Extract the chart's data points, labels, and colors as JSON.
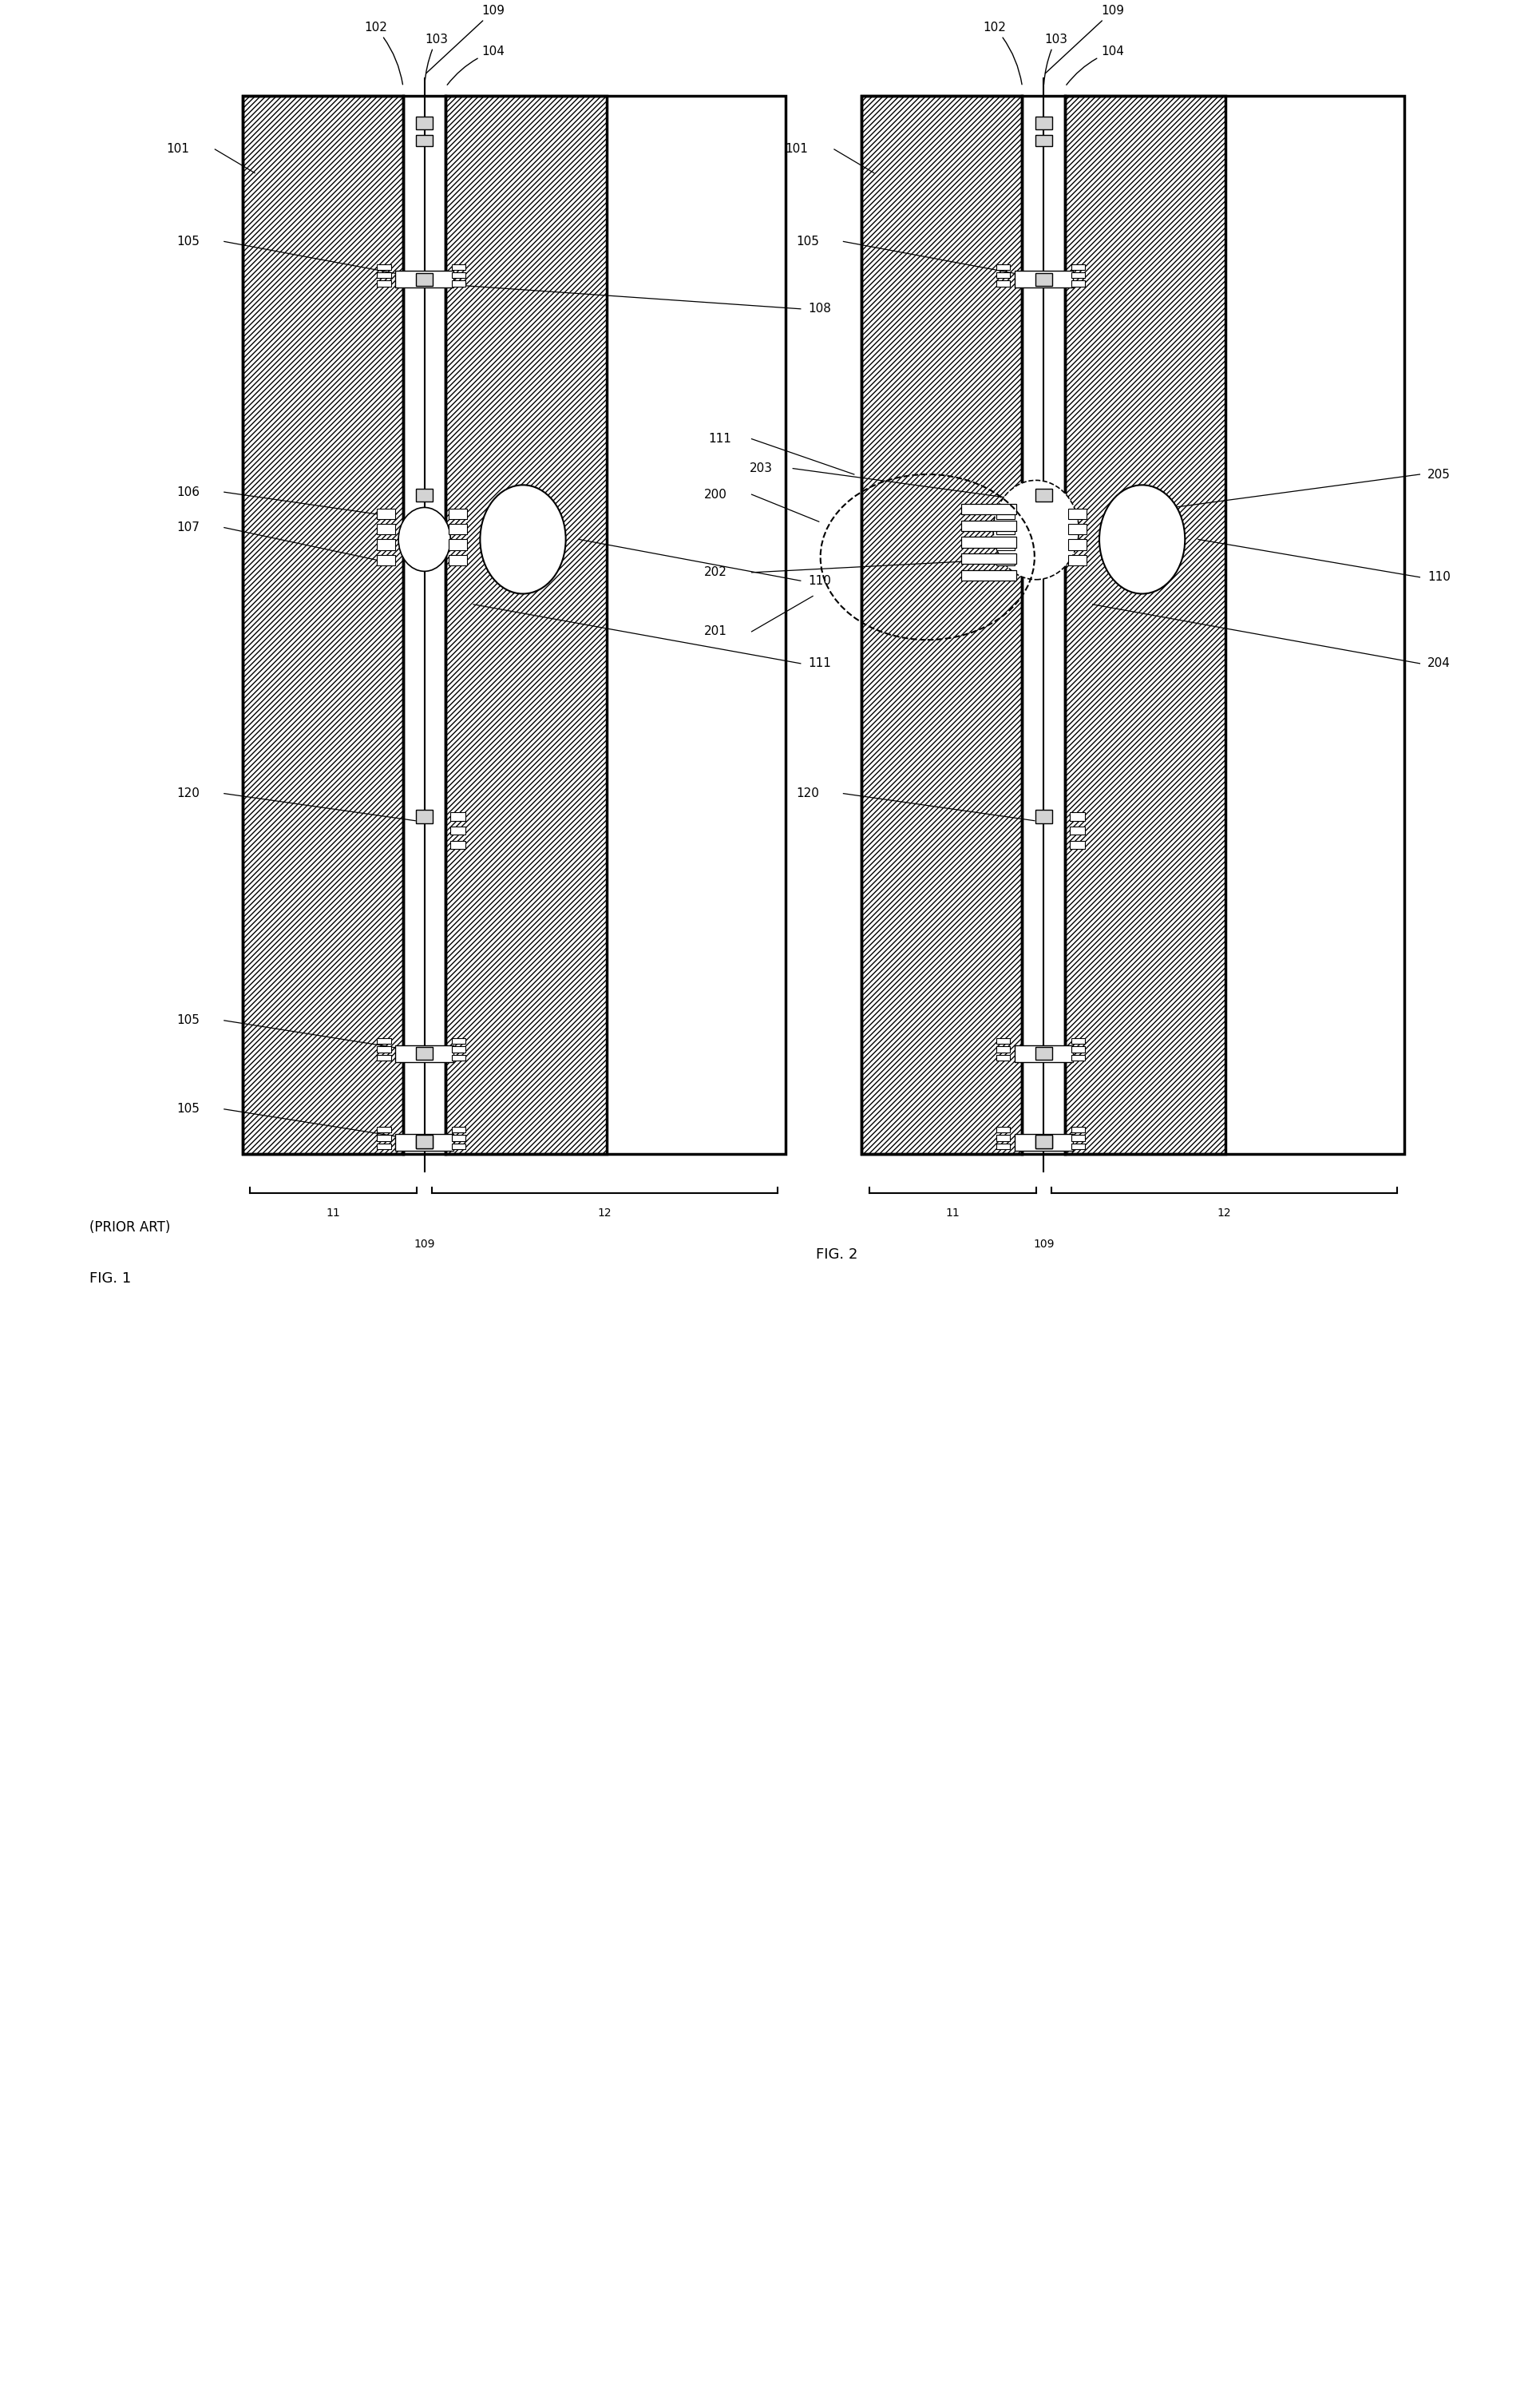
{
  "bg_color": "#ffffff",
  "line_color": "#000000",
  "fig_width": 19.29,
  "fig_height": 29.84,
  "fig1_title": "FIG. 1",
  "fig1_subtitle": "(PRIOR ART)",
  "fig2_title": "FIG. 2",
  "font_size_label": 11,
  "font_size_title": 13
}
